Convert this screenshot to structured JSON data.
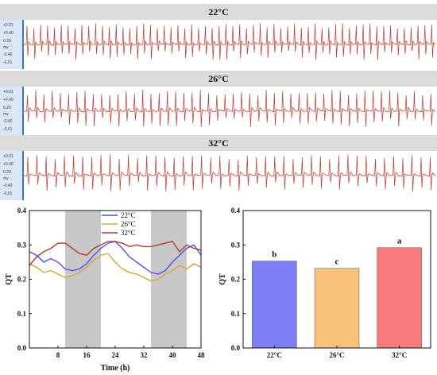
{
  "ecg_panels": [
    {
      "title": "22°C",
      "scale_labels": [
        "+0.01",
        "+0.40",
        "0.20",
        "mv",
        "-0.40",
        "-0.01"
      ],
      "beats": 60
    },
    {
      "title": "26°C",
      "scale_labels": [
        "+0.01",
        "+0.40",
        "0.20",
        "mv",
        "-0.40",
        "-0.01"
      ],
      "beats": 50
    },
    {
      "title": "32°C",
      "scale_labels": [
        "+0.01",
        "+0.40",
        "0.20",
        "mv",
        "-0.40",
        "-0.01"
      ],
      "beats": 45
    }
  ],
  "colors": {
    "ecg_trace": "#c0392b",
    "series_22": "#4f4ff0",
    "series_26": "#d9a53a",
    "series_32": "#b23a2e",
    "bar_22": "#7f7ff5",
    "bar_26": "#f7c27c",
    "bar_32": "#f77b7b",
    "shade": "#c8c8c8"
  },
  "chart_data": [
    {
      "type": "line",
      "xlabel": "Time (h)",
      "ylabel": "QT",
      "xlim": [
        0,
        48
      ],
      "ylim": [
        0,
        0.4
      ],
      "xticks": [
        "8",
        "16",
        "24",
        "32",
        "40",
        "48"
      ],
      "yticks": [
        "0.0",
        "0.1",
        "0.2",
        "0.3",
        "0.4"
      ],
      "shaded_intervals": [
        [
          10,
          20
        ],
        [
          34,
          44
        ]
      ],
      "legend": "top-center",
      "x": [
        0,
        2,
        4,
        6,
        8,
        10,
        12,
        14,
        16,
        18,
        20,
        22,
        24,
        26,
        28,
        30,
        32,
        34,
        36,
        38,
        40,
        42,
        44,
        46,
        48
      ],
      "series": [
        {
          "name": "22°C",
          "values": [
            0.28,
            0.27,
            0.25,
            0.26,
            0.25,
            0.23,
            0.225,
            0.23,
            0.245,
            0.27,
            0.29,
            0.305,
            0.31,
            0.29,
            0.265,
            0.25,
            0.235,
            0.22,
            0.215,
            0.225,
            0.25,
            0.27,
            0.29,
            0.3,
            0.27
          ]
        },
        {
          "name": "26°C",
          "values": [
            0.245,
            0.235,
            0.22,
            0.225,
            0.215,
            0.205,
            0.21,
            0.22,
            0.235,
            0.255,
            0.27,
            0.275,
            0.25,
            0.23,
            0.22,
            0.215,
            0.205,
            0.195,
            0.2,
            0.215,
            0.225,
            0.24,
            0.23,
            0.245,
            0.235
          ]
        },
        {
          "name": "32°C",
          "values": [
            0.24,
            0.265,
            0.28,
            0.29,
            0.305,
            0.305,
            0.29,
            0.275,
            0.27,
            0.29,
            0.3,
            0.31,
            0.31,
            0.305,
            0.295,
            0.3,
            0.295,
            0.295,
            0.3,
            0.305,
            0.31,
            0.28,
            0.3,
            0.29,
            0.285
          ]
        }
      ]
    },
    {
      "type": "bar",
      "ylabel": "QT",
      "ylim": [
        0,
        0.4
      ],
      "yticks": [
        "0.0",
        "0.1",
        "0.2",
        "0.3",
        "0.4"
      ],
      "categories": [
        "22°C",
        "26°C",
        "32°C"
      ],
      "values": [
        0.253,
        0.232,
        0.292
      ],
      "letters": [
        "b",
        "c",
        "a"
      ]
    }
  ]
}
